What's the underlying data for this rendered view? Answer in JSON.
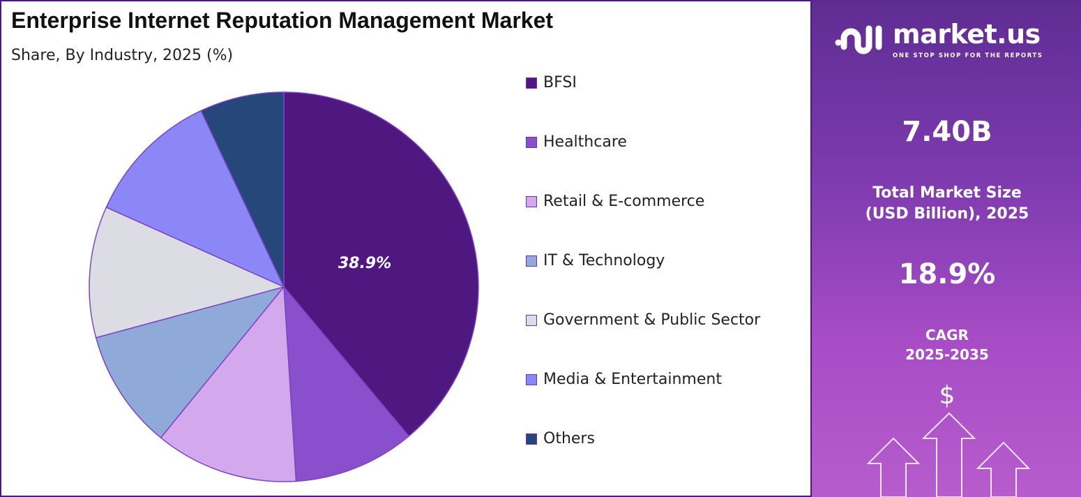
{
  "header": {
    "title": "Enterprise Internet Reputation Management Market",
    "subtitle": "Share, By Industry, 2025 (%)"
  },
  "chart_data": {
    "type": "pie",
    "title": "Enterprise Internet Reputation Management Market",
    "subtitle": "Share, By Industry, 2025 (%)",
    "categories": [
      "BFSI",
      "Healthcare",
      "Retail & E-commerce",
      "IT & Technology",
      "Government & Public Sector",
      "Media & Entertainment",
      "Others"
    ],
    "values": [
      38.9,
      10.1,
      11.9,
      9.9,
      10.9,
      11.3,
      7.0
    ],
    "colors": [
      "#4f1780",
      "#8a4fcc",
      "#d4a8ec",
      "#8fa9d9",
      "#dcdde4",
      "#8b87f7",
      "#26477a"
    ],
    "data_labels": [
      "38.9%",
      "",
      "",
      "",
      "",
      "",
      ""
    ],
    "start_angle": "top, clockwise",
    "legend_position": "right"
  },
  "panel": {
    "logo_name": "market.us",
    "logo_tagline": "ONE STOP SHOP FOR THE REPORTS",
    "market_size": "7.40B",
    "market_size_label_1": "Total Market Size",
    "market_size_label_2": "(USD Billion), 2025",
    "cagr": "18.9%",
    "cagr_label_1": "CAGR",
    "cagr_label_2": "2025-2035",
    "currency_symbol": "$",
    "icons": [
      "dollar-icon",
      "growth-arrows-icon"
    ]
  }
}
